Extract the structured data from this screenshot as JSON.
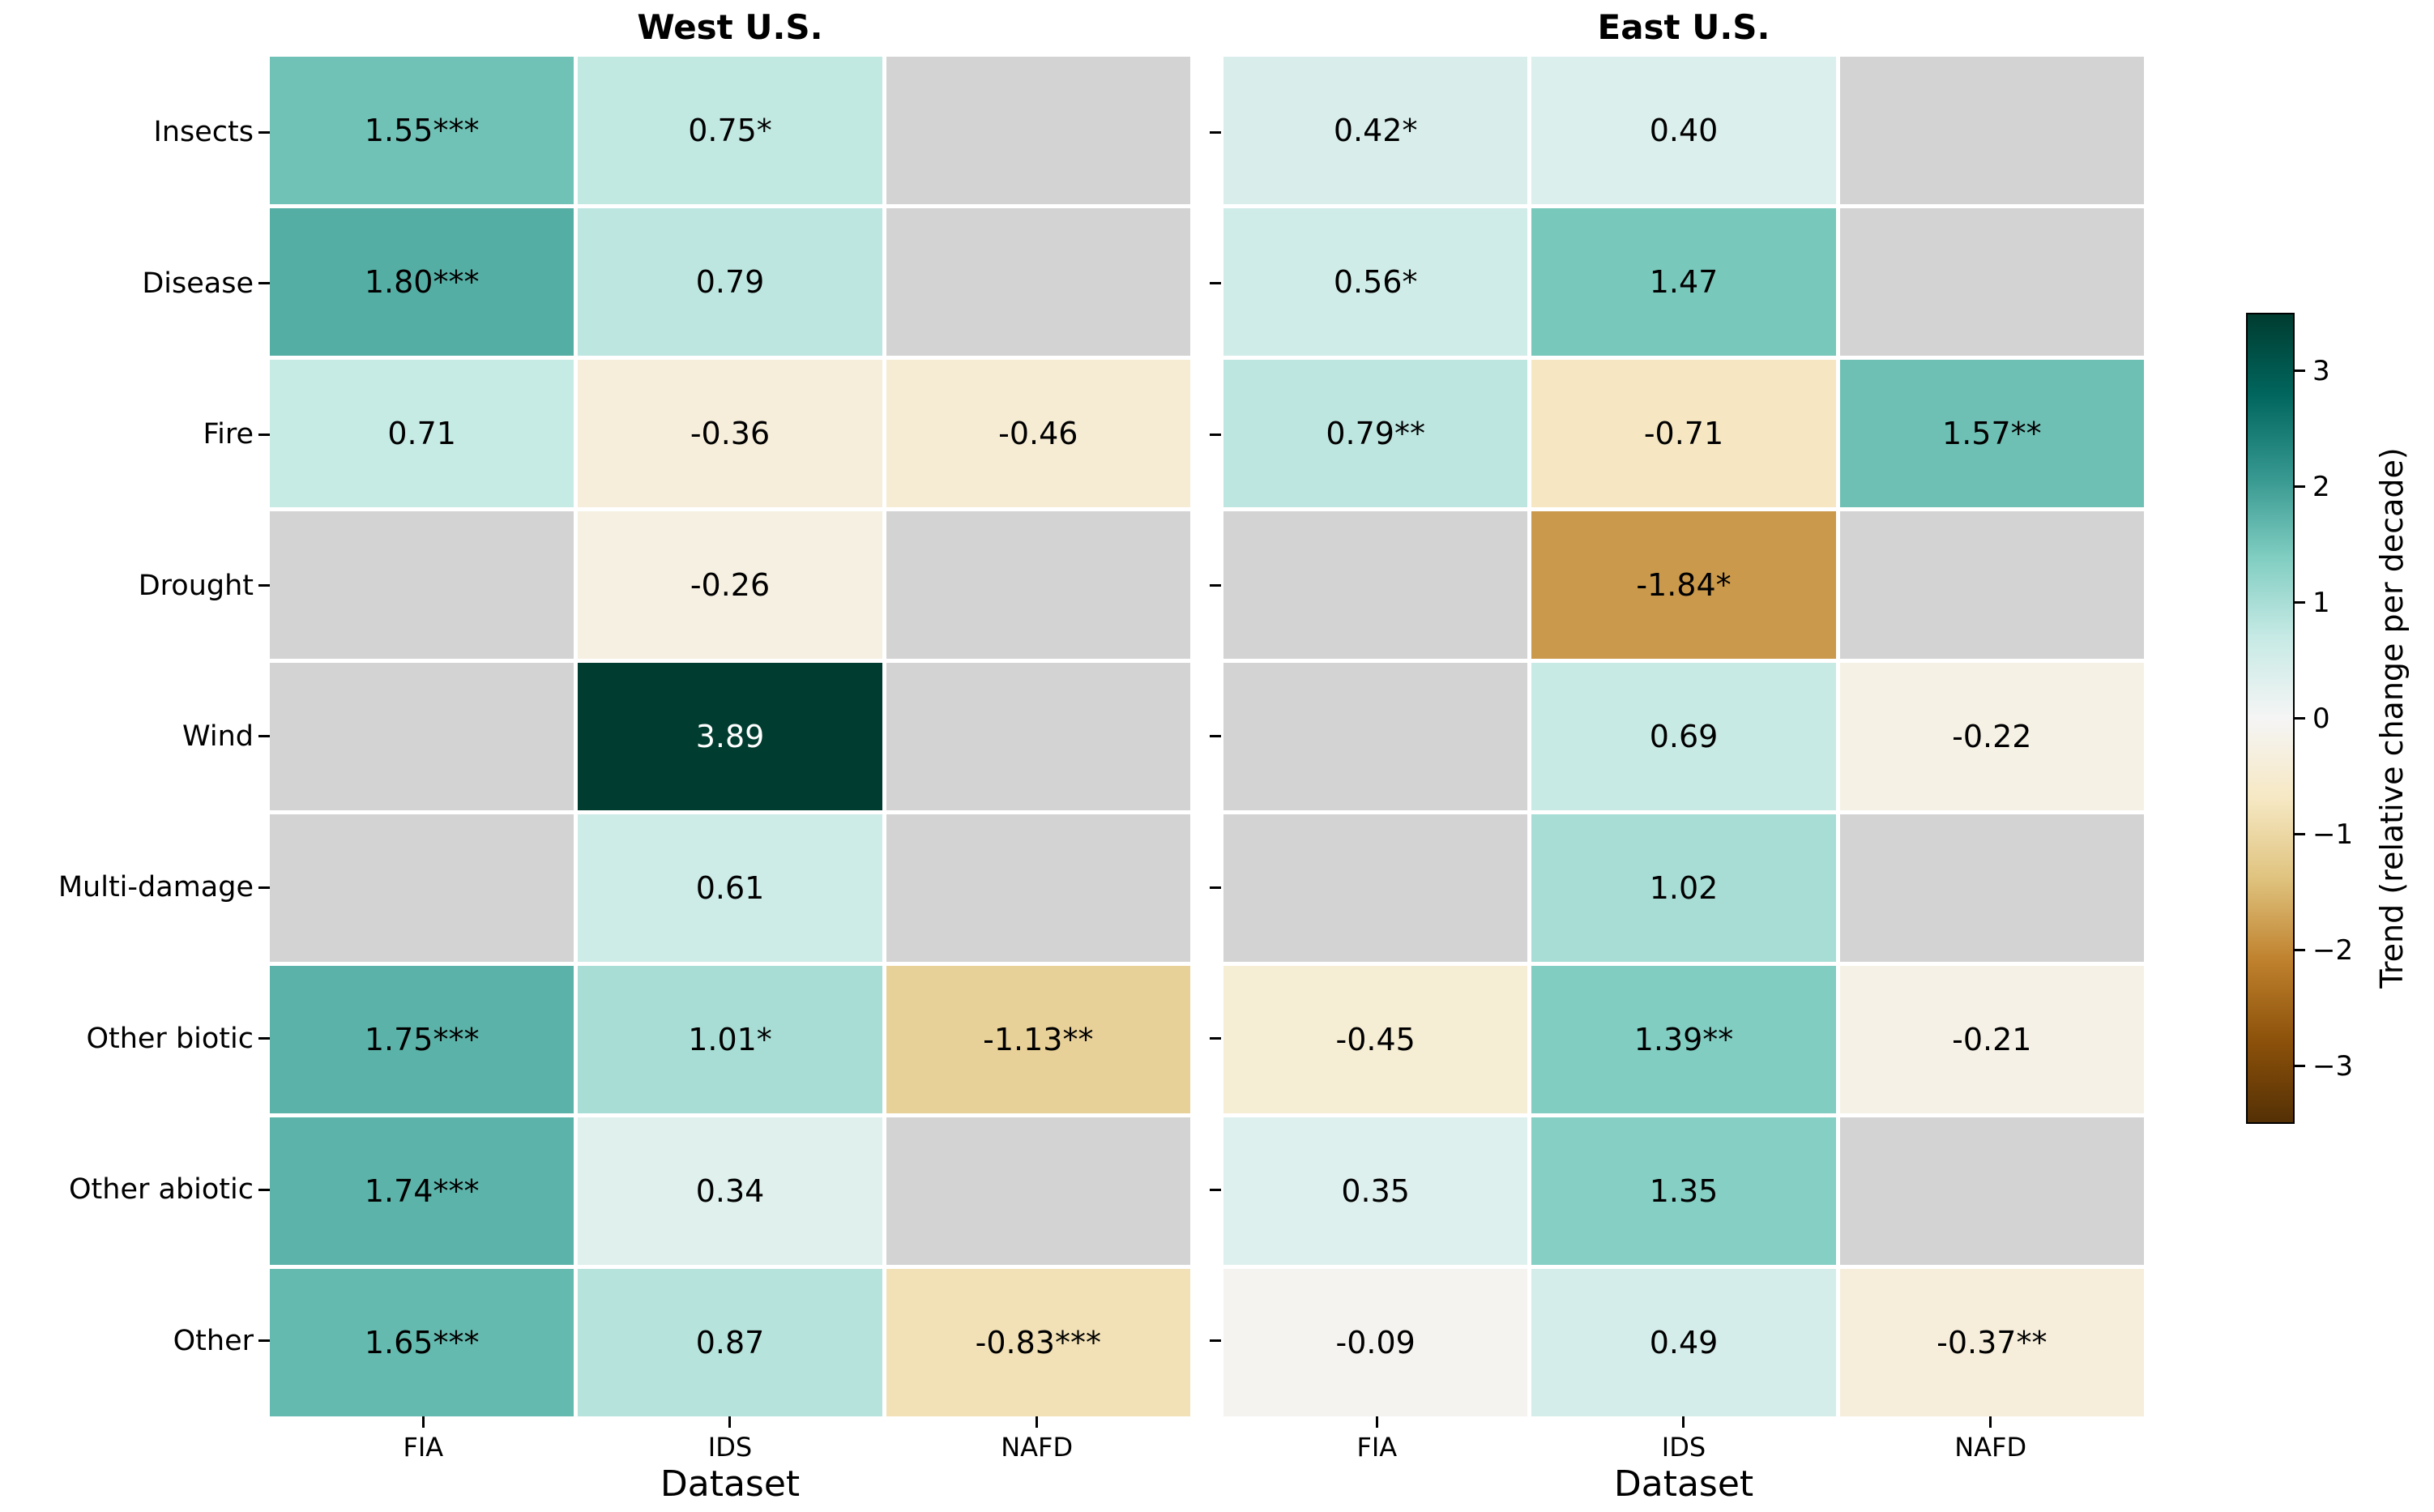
{
  "chart_data": {
    "type": "heatmap",
    "rows": [
      "Insects",
      "Disease",
      "Fire",
      "Drought",
      "Wind",
      "Multi-damage",
      "Other biotic",
      "Other abiotic",
      "Other"
    ],
    "columns": [
      "FIA",
      "IDS",
      "NAFD"
    ],
    "xlabel": "Dataset",
    "panels": [
      {
        "title": "West U.S.",
        "cells": [
          [
            "1.55***",
            "0.75*",
            null
          ],
          [
            "1.80***",
            "0.79",
            null
          ],
          [
            "0.71",
            "-0.36",
            "-0.46"
          ],
          [
            null,
            "-0.26",
            null
          ],
          [
            null,
            "3.89",
            null
          ],
          [
            null,
            "0.61",
            null
          ],
          [
            "1.75***",
            "1.01*",
            "-1.13**"
          ],
          [
            "1.74***",
            "0.34",
            null
          ],
          [
            "1.65***",
            "0.87",
            "-0.83***"
          ]
        ],
        "values": [
          [
            1.55,
            0.75,
            null
          ],
          [
            1.8,
            0.79,
            null
          ],
          [
            0.71,
            -0.36,
            -0.46
          ],
          [
            null,
            -0.26,
            null
          ],
          [
            null,
            3.89,
            null
          ],
          [
            null,
            0.61,
            null
          ],
          [
            1.75,
            1.01,
            -1.13
          ],
          [
            1.74,
            0.34,
            null
          ],
          [
            1.65,
            0.87,
            -0.83
          ]
        ]
      },
      {
        "title": "East U.S.",
        "cells": [
          [
            "0.42*",
            "0.40",
            null
          ],
          [
            "0.56*",
            "1.47",
            null
          ],
          [
            "0.79**",
            "-0.71",
            "1.57**"
          ],
          [
            null,
            "-1.84*",
            null
          ],
          [
            null,
            "0.69",
            "-0.22"
          ],
          [
            null,
            "1.02",
            null
          ],
          [
            "-0.45",
            "1.39**",
            "-0.21"
          ],
          [
            "0.35",
            "1.35",
            null
          ],
          [
            "-0.09",
            "0.49",
            "-0.37**"
          ]
        ],
        "values": [
          [
            0.42,
            0.4,
            null
          ],
          [
            0.56,
            1.47,
            null
          ],
          [
            0.79,
            -0.71,
            1.57
          ],
          [
            null,
            -1.84,
            null
          ],
          [
            null,
            0.69,
            -0.22
          ],
          [
            null,
            1.02,
            null
          ],
          [
            -0.45,
            1.39,
            -0.21
          ],
          [
            0.35,
            1.35,
            null
          ],
          [
            -0.09,
            0.49,
            -0.37
          ]
        ]
      }
    ],
    "colorbar": {
      "label": "Trend (relative change per decade)",
      "ticks": [
        "3",
        "2",
        "1",
        "0",
        "−1",
        "−2",
        "−3"
      ],
      "tick_values": [
        3,
        2,
        1,
        0,
        -1,
        -2,
        -3
      ],
      "vmin": -3.5,
      "vmax": 3.5,
      "colormap": "BrBG",
      "stops": [
        "#543005",
        "#8c510a",
        "#bf812d",
        "#dfc27d",
        "#f6e8c3",
        "#f5f5f5",
        "#c7eae5",
        "#80cdc1",
        "#35978f",
        "#01665e",
        "#003c30"
      ]
    },
    "missing_color": "#d3d3d3",
    "grid_gap_color": "#ffffff",
    "text_color": "#000000",
    "text_color_on_dark": "#ffffff"
  }
}
